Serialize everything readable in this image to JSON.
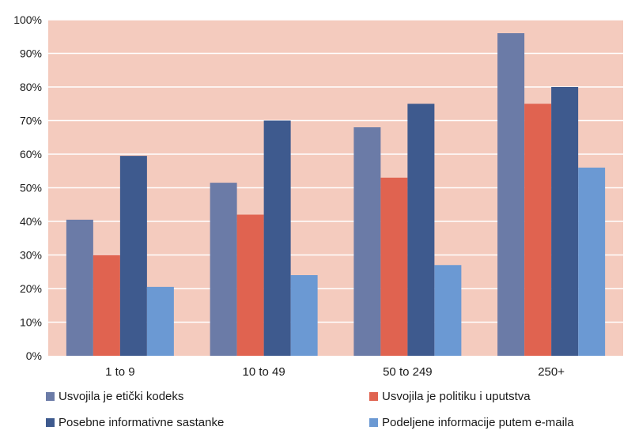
{
  "chart_data": {
    "type": "bar",
    "categories": [
      "1 to 9",
      "10 to 49",
      "50 to 249",
      "250+"
    ],
    "series": [
      {
        "name": "Usvojila je etički kodeks",
        "color": "#6b7ba7",
        "values": [
          40.5,
          51.5,
          68,
          96
        ]
      },
      {
        "name": "Usvojila je politiku i uputstva",
        "color": "#e06350",
        "values": [
          30,
          42,
          53,
          75
        ]
      },
      {
        "name": "Posebne informativne sastanke",
        "color": "#3e5a8e",
        "values": [
          59.5,
          70,
          75,
          80
        ]
      },
      {
        "name": "Podeljene informacije putem e-maila",
        "color": "#6b99d3",
        "values": [
          20.5,
          24,
          27,
          56
        ]
      }
    ],
    "y_ticks": [
      "0%",
      "10%",
      "20%",
      "30%",
      "40%",
      "50%",
      "60%",
      "70%",
      "80%",
      "90%",
      "100%"
    ],
    "ylim": [
      0,
      100
    ],
    "y_unit": "%",
    "grid": true,
    "plot_background": "#f4cbbe",
    "gridline_color": "#ffffff",
    "legend_position": "bottom"
  }
}
